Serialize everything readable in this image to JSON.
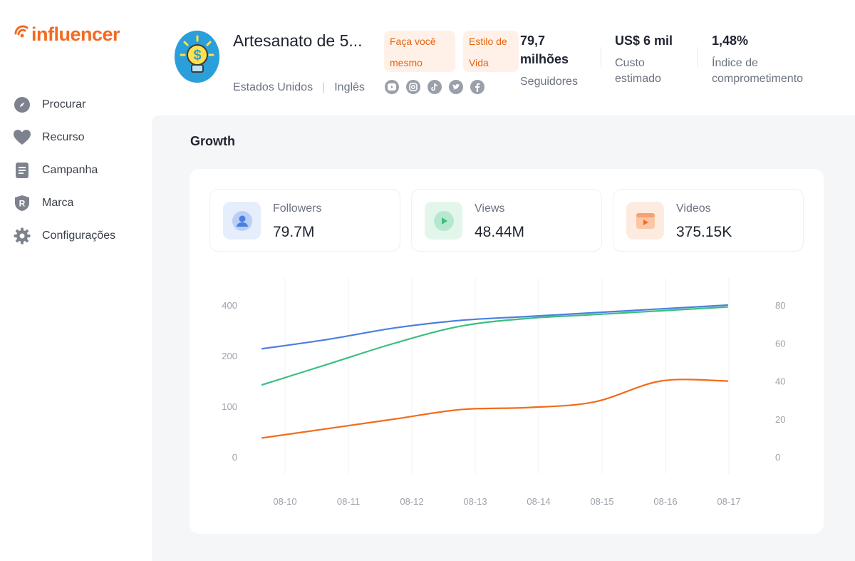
{
  "brand": {
    "name": "influencer",
    "color": "#f26a21"
  },
  "sidebar": {
    "items": [
      {
        "label": "Procurar",
        "icon": "compass-icon"
      },
      {
        "label": "Recurso",
        "icon": "heart-icon"
      },
      {
        "label": "Campanha",
        "icon": "document-icon"
      },
      {
        "label": "Marca",
        "icon": "brand-shield-icon"
      },
      {
        "label": "Configurações",
        "icon": "gear-icon"
      }
    ]
  },
  "profile": {
    "name": "Artesanato de 5...",
    "country": "Estados Unidos",
    "language": "Inglês",
    "tags": [
      "Faça você mesmo",
      "Estilo de Vida"
    ],
    "socials": [
      "youtube-icon",
      "instagram-icon",
      "tiktok-icon",
      "twitter-icon",
      "facebook-icon"
    ]
  },
  "stats": {
    "followers": {
      "value": "79,7 milhões",
      "label": "Seguidores"
    },
    "cost": {
      "value": "US$ 6 mil",
      "label": "Custo estimado"
    },
    "engagement": {
      "value": "1,48%",
      "label": "Índice de comprometimento"
    }
  },
  "growth": {
    "title": "Growth",
    "metrics": [
      {
        "label": "Followers",
        "value": "79.7M",
        "icon": "user-icon",
        "color": "#4a7fe0"
      },
      {
        "label": "Views",
        "value": "48.44M",
        "icon": "play-icon",
        "color": "#3bbf7e"
      },
      {
        "label": "Videos",
        "value": "375.15K",
        "icon": "video-clip-icon",
        "color": "#f36b1c"
      }
    ]
  },
  "chart_data": {
    "type": "line",
    "x": [
      "08-10",
      "08-11",
      "08-12",
      "08-13",
      "08-14",
      "08-15",
      "08-16",
      "08-17"
    ],
    "y_left_ticks": [
      0,
      100,
      200,
      400
    ],
    "y_right_ticks": [
      0,
      20,
      40,
      60,
      80
    ],
    "ylim_right": [
      0,
      80
    ],
    "grid": "vertical",
    "series": [
      {
        "color": "#4a7fe0",
        "axis": "right",
        "values": [
          57,
          62,
          68,
          72,
          74,
          76,
          78,
          80
        ]
      },
      {
        "color": "#3bbf7e",
        "axis": "right",
        "values": [
          38,
          49,
          60,
          69,
          73,
          75,
          77,
          79
        ]
      },
      {
        "color": "#f36b1c",
        "axis": "right",
        "values": [
          10,
          15,
          20,
          25,
          26,
          29,
          40,
          40
        ]
      }
    ]
  }
}
